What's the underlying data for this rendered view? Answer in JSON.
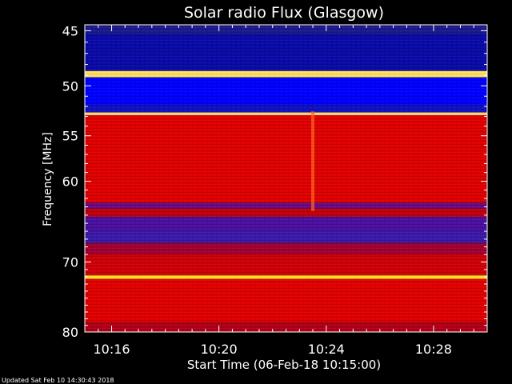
{
  "chart_data": {
    "type": "heatmap",
    "title": "Solar radio Flux (Glasgow)",
    "xlabel": "Start Time (06-Feb-18 10:15:00)",
    "ylabel": "Frequency [MHz]",
    "footer": "Updated Sat Feb 10 14:30:43 2018",
    "x_unit": "minutes after 10:15:00",
    "xlim": [
      0,
      15
    ],
    "ylim": [
      80,
      44.5
    ],
    "x_ticks": [
      {
        "value": 1,
        "label": "10:16"
      },
      {
        "value": 5,
        "label": "10:20"
      },
      {
        "value": 9,
        "label": "10:24"
      },
      {
        "value": 13,
        "label": "10:28"
      }
    ],
    "y_ticks": [
      {
        "value": 45,
        "label": "45"
      },
      {
        "value": 50,
        "label": "50"
      },
      {
        "value": 55,
        "label": "55"
      },
      {
        "value": 60,
        "label": "60"
      },
      {
        "value": 70,
        "label": "70"
      },
      {
        "value": 80,
        "label": "80"
      }
    ],
    "y_minor_ticks": [
      46,
      47,
      48,
      49,
      51,
      52,
      53,
      54,
      56,
      57,
      58,
      59,
      61,
      62,
      63,
      64,
      65,
      66,
      67,
      68,
      69,
      71,
      72,
      73,
      74,
      75,
      76,
      77,
      78,
      79
    ],
    "x_minor_ticks": [
      0.5,
      1.5,
      2,
      2.5,
      3,
      3.5,
      4,
      4.5,
      5.5,
      6,
      6.5,
      7,
      7.5,
      8,
      8.5,
      9.5,
      10,
      10.5,
      11,
      11.5,
      12,
      12.5,
      13.5,
      14,
      14.5
    ],
    "intensity_bands": [
      {
        "f0": 44.5,
        "f1": 45.3,
        "color": "#1a1a8c"
      },
      {
        "f0": 45.3,
        "f1": 48.6,
        "color": "#0a0aa8"
      },
      {
        "f0": 48.6,
        "f1": 49.2,
        "color": "#ffe060"
      },
      {
        "f0": 49.2,
        "f1": 51.8,
        "color": "#0000ff"
      },
      {
        "f0": 51.8,
        "f1": 52.6,
        "color": "#1010c0"
      },
      {
        "f0": 52.6,
        "f1": 52.9,
        "color": "#ffd070"
      },
      {
        "f0": 52.9,
        "f1": 62.5,
        "color": "#e00000"
      },
      {
        "f0": 62.5,
        "f1": 63.2,
        "color": "#6a0a80"
      },
      {
        "f0": 63.2,
        "f1": 64.2,
        "color": "#c00010"
      },
      {
        "f0": 64.2,
        "f1": 66.0,
        "color": "#4a10a0"
      },
      {
        "f0": 66.0,
        "f1": 67.5,
        "color": "#3a1aa8"
      },
      {
        "f0": 67.5,
        "f1": 69.0,
        "color": "#a00030"
      },
      {
        "f0": 69.0,
        "f1": 71.8,
        "color": "#d00008"
      },
      {
        "f0": 71.8,
        "f1": 72.3,
        "color": "#ffe020"
      },
      {
        "f0": 72.3,
        "f1": 78.5,
        "color": "#e00000"
      },
      {
        "f0": 78.5,
        "f1": 80.0,
        "color": "#b00018"
      }
    ],
    "burst": {
      "t": 8.5,
      "f0": 52.5,
      "f1": 63.5,
      "color": "#ff6020"
    },
    "colors": {
      "background": "#000000",
      "axis": "#ffffff"
    }
  }
}
